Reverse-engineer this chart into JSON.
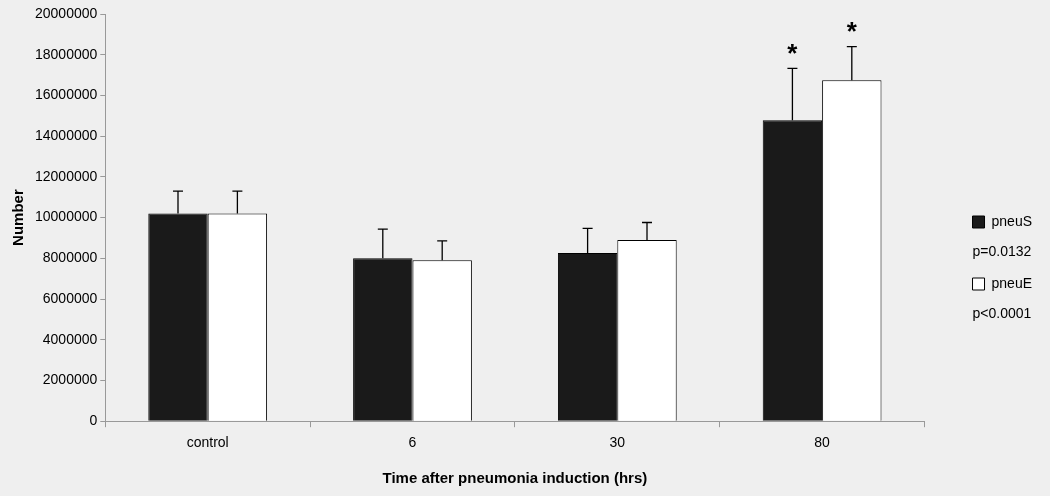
{
  "chart_data": {
    "type": "bar",
    "xlabel": "Time after pneumonia induction (hrs)",
    "ylabel": "Number",
    "categories": [
      "control",
      "6",
      "30",
      "80"
    ],
    "series": [
      {
        "name": "pneuS",
        "color": "#1a1a1a",
        "values": [
          10200000,
          8000000,
          8260000,
          14780000
        ],
        "errors": [
          1100000,
          1430000,
          1210000,
          2550000
        ]
      },
      {
        "name": "pneuE",
        "color": "#ffffff",
        "values": [
          10200000,
          7900000,
          8900000,
          16750000
        ],
        "errors": [
          1100000,
          960000,
          860000,
          1650000
        ]
      }
    ],
    "ylim": [
      0,
      20000000
    ],
    "yticks": [
      0,
      2000000,
      4000000,
      6000000,
      8000000,
      10000000,
      12000000,
      14000000,
      16000000,
      18000000,
      20000000
    ],
    "grid": false,
    "legend": "right",
    "annotations": [
      "p=0.0132",
      "p<0.0001",
      {
        "text": "*",
        "x": "80",
        "y": 14780000
      },
      {
        "text": "*",
        "x": "80",
        "y": 16750000
      }
    ]
  }
}
